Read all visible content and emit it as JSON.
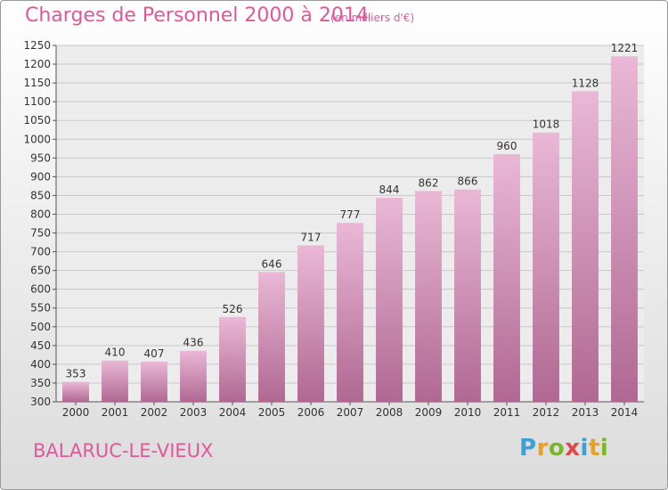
{
  "header": {
    "title": "Charges de Personnel 2000 à 2014",
    "subtitle": "(en milliers d'€)"
  },
  "footer": {
    "place": "BALARUC-LE-VIEUX",
    "brand_letters": [
      "P",
      "r",
      "o",
      "x",
      "i",
      "t",
      "i"
    ],
    "brand_colors": [
      "#3aa0d8",
      "#e8a020",
      "#7ab72a",
      "#e04848",
      "#3aa0d8",
      "#e8a020",
      "#7ab72a"
    ]
  },
  "colors": {
    "bar_light": "#eab8d6",
    "bar_dark": "#b06892",
    "label": "#333333",
    "grid": "#c8c8c8"
  },
  "chart_data": {
    "type": "bar",
    "categories": [
      "2000",
      "2001",
      "2002",
      "2003",
      "2004",
      "2005",
      "2006",
      "2007",
      "2008",
      "2009",
      "2010",
      "2011",
      "2012",
      "2013",
      "2014"
    ],
    "values": [
      353,
      410,
      407,
      436,
      526,
      646,
      717,
      777,
      844,
      862,
      866,
      960,
      1018,
      1128,
      1221
    ],
    "ylim": [
      300,
      1250
    ],
    "yticks": [
      300,
      350,
      400,
      450,
      500,
      550,
      600,
      650,
      700,
      750,
      800,
      850,
      900,
      950,
      1000,
      1050,
      1100,
      1150,
      1200,
      1250
    ],
    "grid": true,
    "legend": "none"
  }
}
